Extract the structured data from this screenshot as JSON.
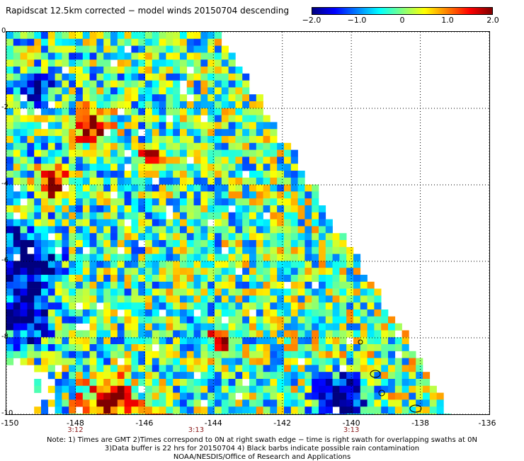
{
  "title": "Rapidscat 12.5km corrected − model winds 20150704 descending",
  "colorbar": {
    "labels": [
      "−2.0",
      "−1.0",
      "0",
      "1.0",
      "2.0"
    ],
    "values": [
      -2.0,
      -1.0,
      0,
      1.0,
      2.0
    ],
    "range": [
      -2.0,
      2.0
    ],
    "colors": [
      "#00007f",
      "#0000ff",
      "#0080ff",
      "#00ffff",
      "#80ff80",
      "#ffff00",
      "#ff8000",
      "#ff0000",
      "#7f0000"
    ]
  },
  "map": {
    "x_axis": {
      "ticks": [
        "-150",
        "-148",
        "-146",
        "-144",
        "-142",
        "-140",
        "-138",
        "-136"
      ],
      "values": [
        -150,
        -148,
        -146,
        -144,
        -142,
        -140,
        -138,
        -136
      ],
      "range": [
        -150,
        -136
      ]
    },
    "y_axis": {
      "ticks": [
        "0",
        "-2",
        "-4",
        "-6",
        "-8",
        "-10"
      ],
      "values": [
        0,
        -2,
        -4,
        -6,
        -8,
        -10
      ],
      "range": [
        -10,
        0
      ]
    },
    "time_labels": [
      {
        "text": "3:12",
        "lon": -148
      },
      {
        "text": "3:13",
        "lon": -144.5
      },
      {
        "text": "3:13",
        "lon": -140
      }
    ],
    "grid": true
  },
  "notes": [
    "Note: 1) Times are GMT 2)Times correspond to 0N at right swath edge − time is right swath for overlapping swaths at 0N",
    "3)Data buffer is 22 hrs for 20150704 4) Black barbs indicate possible rain contamination",
    "NOAA/NESDIS/Office of Research and Applications"
  ]
}
